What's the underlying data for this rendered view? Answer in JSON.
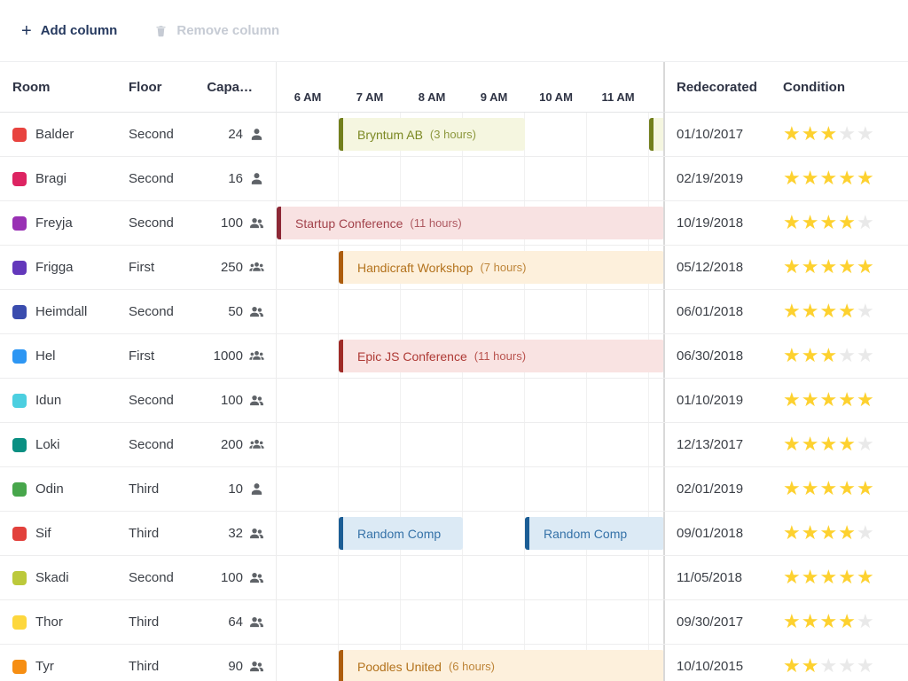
{
  "toolbar": {
    "add_column_label": "Add column",
    "remove_column_label": "Remove column",
    "add_icon": "plus-icon",
    "remove_icon": "trash-icon"
  },
  "header": {
    "room": "Room",
    "floor": "Floor",
    "capacity": "Capa…",
    "redecorated": "Redecorated",
    "condition": "Condition",
    "time_labels": [
      "6 AM",
      "7 AM",
      "8 AM",
      "9 AM",
      "10 AM",
      "11 AM"
    ]
  },
  "stars_max": 5,
  "star_colors": {
    "filled": "#fdd12f",
    "empty": "#e9e9e9"
  },
  "event_schemes": {
    "olive": {
      "border": "#727f1c",
      "bg": "#f5f6e0",
      "text": "#7b8822"
    },
    "maroon": {
      "border": "#8d2836",
      "bg": "#f8e2e2",
      "text": "#a2424b"
    },
    "red": {
      "border": "#9f2b27",
      "bg": "#f9e3e2",
      "text": "#ae3a35"
    },
    "amber": {
      "border": "#ad5d0e",
      "bg": "#fdf0dc",
      "text": "#b3721c"
    },
    "blue": {
      "border": "#1b5d95",
      "bg": "#dceaf5",
      "text": "#3572a8"
    }
  },
  "rows": [
    {
      "room": "Balder",
      "color": "#e8433f",
      "floor": "Second",
      "capacity": "24",
      "capacity_icon": "person-icon",
      "redecorated": "01/10/2017",
      "stars": 3,
      "events": [
        {
          "label": "Bryntum AB",
          "duration": "(3 hours)",
          "scheme": "olive",
          "start": 1,
          "span": 3
        },
        {
          "label": "",
          "duration": "",
          "scheme": "olive",
          "start": 6,
          "span": 0.25
        }
      ]
    },
    {
      "room": "Bragi",
      "color": "#dd2462",
      "floor": "Second",
      "capacity": "16",
      "capacity_icon": "person-icon",
      "redecorated": "02/19/2019",
      "stars": 5,
      "events": []
    },
    {
      "room": "Freyja",
      "color": "#9931b4",
      "floor": "Second",
      "capacity": "100",
      "capacity_icon": "people-icon",
      "redecorated": "10/19/2018",
      "stars": 4,
      "events": [
        {
          "label": "Startup Conference",
          "duration": "(11 hours)",
          "scheme": "maroon",
          "start": 0,
          "span": 6.25
        }
      ]
    },
    {
      "room": "Frigga",
      "color": "#6338bb",
      "floor": "First",
      "capacity": "250",
      "capacity_icon": "crowd-icon",
      "redecorated": "05/12/2018",
      "stars": 5,
      "events": [
        {
          "label": "Handicraft Workshop",
          "duration": "(7 hours)",
          "scheme": "amber",
          "start": 1,
          "span": 5.25
        }
      ]
    },
    {
      "room": "Heimdall",
      "color": "#3a4cae",
      "floor": "Second",
      "capacity": "50",
      "capacity_icon": "people-icon",
      "redecorated": "06/01/2018",
      "stars": 4,
      "events": []
    },
    {
      "room": "Hel",
      "color": "#2d96f3",
      "floor": "First",
      "capacity": "1000",
      "capacity_icon": "crowd-icon",
      "redecorated": "06/30/2018",
      "stars": 3,
      "events": [
        {
          "label": "Epic JS Conference",
          "duration": "(11 hours)",
          "scheme": "red",
          "start": 1,
          "span": 5.25
        }
      ]
    },
    {
      "room": "Idun",
      "color": "#4ccfe0",
      "floor": "Second",
      "capacity": "100",
      "capacity_icon": "people-icon",
      "redecorated": "01/10/2019",
      "stars": 5,
      "events": []
    },
    {
      "room": "Loki",
      "color": "#0a8f82",
      "floor": "Second",
      "capacity": "200",
      "capacity_icon": "crowd-icon",
      "redecorated": "12/13/2017",
      "stars": 4,
      "events": []
    },
    {
      "room": "Odin",
      "color": "#47a64b",
      "floor": "Third",
      "capacity": "10",
      "capacity_icon": "person-icon",
      "redecorated": "02/01/2019",
      "stars": 5,
      "events": []
    },
    {
      "room": "Sif",
      "color": "#e2413c",
      "floor": "Third",
      "capacity": "32",
      "capacity_icon": "people-icon",
      "redecorated": "09/01/2018",
      "stars": 4,
      "events": [
        {
          "label": "Random Comp",
          "duration": "",
          "scheme": "blue",
          "start": 1,
          "span": 2
        },
        {
          "label": "Random Comp",
          "duration": "",
          "scheme": "blue",
          "start": 4,
          "span": 2.25
        }
      ]
    },
    {
      "room": "Skadi",
      "color": "#bcc93b",
      "floor": "Second",
      "capacity": "100",
      "capacity_icon": "people-icon",
      "redecorated": "11/05/2018",
      "stars": 5,
      "events": []
    },
    {
      "room": "Thor",
      "color": "#fdd73d",
      "floor": "Third",
      "capacity": "64",
      "capacity_icon": "people-icon",
      "redecorated": "09/30/2017",
      "stars": 4,
      "events": []
    },
    {
      "room": "Tyr",
      "color": "#f68e13",
      "floor": "Third",
      "capacity": "90",
      "capacity_icon": "people-icon",
      "redecorated": "10/10/2015",
      "stars": 2,
      "events": [
        {
          "label": "Poodles United",
          "duration": "(6 hours)",
          "scheme": "amber",
          "start": 1,
          "span": 5.25
        }
      ]
    }
  ]
}
